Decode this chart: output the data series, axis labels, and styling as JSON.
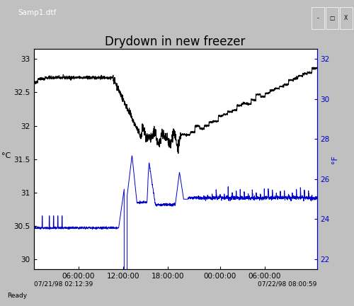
{
  "title": "Drydown in new freezer",
  "window_title": "Samp1.dtf",
  "ylabel_left": "°C",
  "ylabel_right": "°F",
  "xlabel_left": "07/21/98 02:12:39",
  "xlabel_right": "07/22/98 08:00:59",
  "ylim_left": [
    29.85,
    33.15
  ],
  "ylim_right": [
    21.5,
    32.5
  ],
  "yticks_left": [
    30,
    30.5,
    31,
    31.5,
    32,
    32.5,
    33
  ],
  "yticks_right": [
    22,
    24,
    26,
    28,
    30,
    32
  ],
  "xtick_labels": [
    "06:00:00",
    "12:00:00",
    "18:00:00",
    "00:00:00",
    "06:00:00"
  ],
  "xtick_positions": [
    0.158,
    0.316,
    0.474,
    0.658,
    0.816
  ],
  "bg_color": "#ffffff",
  "plot_bg": "#ffffff",
  "frame_color": "#000080",
  "black_line_color": "#000000",
  "blue_line_color": "#0000cc",
  "title_fontsize": 12,
  "tick_fontsize": 7.5
}
